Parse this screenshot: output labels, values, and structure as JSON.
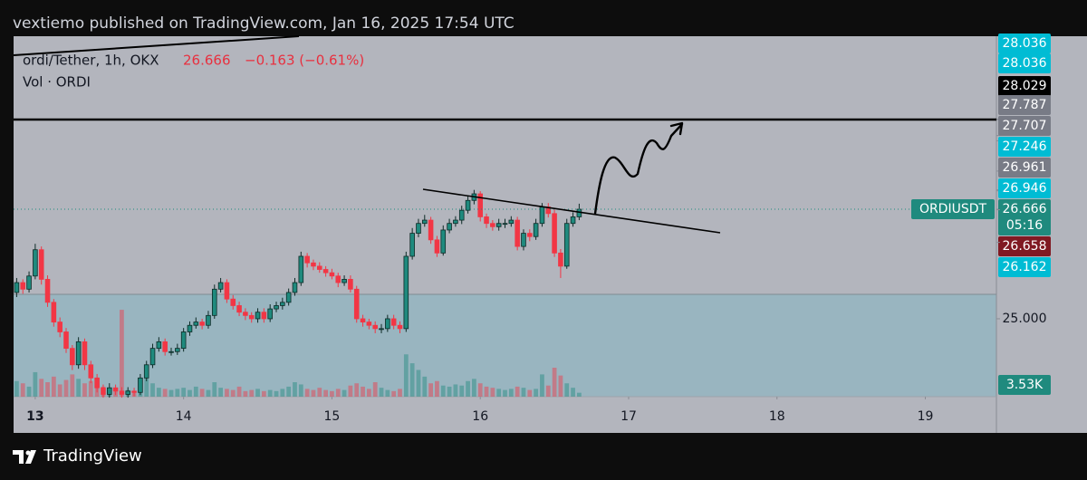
{
  "header": {
    "text": "vextiemo published on TradingView.com, Jan 16, 2025 17:54 UTC"
  },
  "chart_data": {
    "type": "candlestick",
    "symbol": "ordi/Tether, 1h, OKX",
    "last": 26.666,
    "change": "−0.163 (−0.61%)",
    "volume_title": "Vol · ORDI",
    "symbol_tag": "ORDIUSDT",
    "countdown": "05:16",
    "up_color": "#1f8a7e",
    "down_color": "#f23645",
    "xlim": [
      -0.5,
      158.5
    ],
    "xticks": [
      {
        "value": 3,
        "label": "13"
      },
      {
        "value": 27,
        "label": "14"
      },
      {
        "value": 51,
        "label": "15"
      },
      {
        "value": 75,
        "label": "16"
      },
      {
        "value": 99,
        "label": "17"
      },
      {
        "value": 123,
        "label": "18"
      },
      {
        "value": 147,
        "label": "19"
      }
    ],
    "ylim": [
      23.815,
      29.297
    ],
    "open": [
      25.4,
      25.55,
      25.45,
      25.65,
      26.05,
      25.6,
      25.25,
      24.95,
      24.8,
      24.55,
      24.3,
      24.65,
      24.3,
      24.1,
      23.95,
      23.85,
      23.95,
      23.9,
      23.85,
      23.9,
      23.88,
      24.1,
      24.3,
      24.55,
      24.65,
      24.5,
      24.5,
      24.55,
      24.8,
      24.9,
      24.95,
      24.9,
      25.05,
      25.45,
      25.55,
      25.3,
      25.2,
      25.1,
      25.05,
      25.0,
      25.1,
      25.0,
      25.15,
      25.2,
      25.25,
      25.4,
      25.55,
      25.95,
      25.85,
      25.8,
      25.75,
      25.7,
      25.65,
      25.55,
      25.6,
      25.45,
      25.0,
      24.95,
      24.9,
      24.85,
      24.85,
      25.0,
      24.9,
      24.85,
      25.95,
      26.3,
      26.45,
      26.5,
      26.2,
      26.0,
      26.35,
      26.45,
      26.5,
      26.65,
      26.8,
      26.9,
      26.55,
      26.45,
      26.4,
      26.45,
      26.45,
      26.5,
      26.1,
      26.3,
      26.25,
      26.45,
      26.7,
      26.6,
      26.0,
      25.8,
      26.45,
      26.55
    ],
    "high": [
      25.62,
      25.6,
      25.72,
      26.14,
      26.1,
      25.66,
      25.3,
      25.02,
      24.86,
      24.6,
      24.72,
      24.7,
      24.36,
      24.16,
      24.0,
      24.02,
      24.0,
      23.96,
      23.96,
      23.95,
      24.16,
      24.36,
      24.62,
      24.72,
      24.7,
      24.56,
      24.62,
      24.86,
      24.96,
      25.02,
      25.0,
      25.12,
      25.52,
      25.62,
      25.6,
      25.36,
      25.26,
      25.16,
      25.1,
      25.16,
      25.16,
      25.22,
      25.26,
      25.32,
      25.46,
      25.62,
      26.02,
      26.0,
      25.9,
      25.86,
      25.8,
      25.76,
      25.7,
      25.66,
      25.66,
      25.5,
      25.06,
      25.0,
      24.96,
      24.92,
      25.06,
      25.06,
      24.96,
      26.02,
      26.38,
      26.52,
      26.58,
      26.55,
      26.26,
      26.42,
      26.52,
      26.56,
      26.72,
      26.86,
      26.96,
      26.94,
      26.6,
      26.5,
      26.52,
      26.52,
      26.56,
      26.55,
      26.36,
      26.36,
      26.52,
      26.76,
      26.76,
      26.66,
      26.06,
      26.52,
      26.62,
      26.75
    ],
    "low": [
      25.33,
      25.38,
      25.4,
      25.6,
      25.52,
      25.18,
      24.88,
      24.72,
      24.48,
      24.22,
      24.24,
      24.22,
      24.02,
      23.88,
      23.8,
      23.8,
      23.84,
      23.8,
      23.8,
      23.82,
      23.84,
      24.05,
      24.25,
      24.5,
      24.44,
      24.44,
      24.45,
      24.5,
      24.74,
      24.85,
      24.84,
      24.85,
      25.0,
      25.4,
      25.24,
      25.14,
      25.04,
      24.98,
      24.94,
      24.94,
      24.94,
      24.95,
      25.1,
      25.14,
      25.2,
      25.35,
      25.5,
      25.78,
      25.74,
      25.7,
      25.64,
      25.6,
      25.48,
      25.5,
      25.4,
      24.94,
      24.88,
      24.84,
      24.78,
      24.78,
      24.8,
      24.84,
      24.78,
      24.8,
      25.9,
      26.24,
      26.4,
      26.14,
      25.94,
      25.96,
      26.3,
      26.4,
      26.44,
      26.6,
      26.74,
      26.48,
      26.38,
      26.34,
      26.34,
      26.38,
      26.4,
      26.04,
      26.04,
      26.18,
      26.2,
      26.4,
      26.54,
      25.94,
      25.62,
      25.76,
      26.4,
      26.5
    ],
    "close": [
      25.55,
      25.45,
      25.65,
      26.05,
      25.6,
      25.25,
      24.95,
      24.8,
      24.55,
      24.3,
      24.65,
      24.3,
      24.1,
      23.95,
      23.85,
      23.95,
      23.9,
      23.85,
      23.9,
      23.88,
      24.1,
      24.3,
      24.55,
      24.65,
      24.5,
      24.5,
      24.55,
      24.8,
      24.9,
      24.95,
      24.9,
      25.05,
      25.45,
      25.55,
      25.3,
      25.2,
      25.1,
      25.05,
      25.0,
      25.1,
      25.0,
      25.15,
      25.2,
      25.25,
      25.4,
      25.55,
      25.95,
      25.85,
      25.8,
      25.75,
      25.7,
      25.65,
      25.55,
      25.6,
      25.45,
      25.0,
      24.95,
      24.9,
      24.85,
      24.85,
      25.0,
      24.9,
      24.85,
      25.95,
      26.3,
      26.45,
      26.5,
      26.2,
      26.0,
      26.35,
      26.45,
      26.5,
      26.65,
      26.8,
      26.9,
      26.55,
      26.45,
      26.4,
      26.45,
      26.45,
      26.5,
      26.1,
      26.3,
      26.25,
      26.45,
      26.7,
      26.6,
      26.0,
      25.8,
      26.45,
      26.55,
      26.666
    ],
    "volume": [
      14000,
      12000,
      9000,
      22000,
      16000,
      13000,
      18000,
      11000,
      15000,
      20000,
      16000,
      12000,
      14000,
      10000,
      9000,
      8000,
      7000,
      78000,
      6000,
      5000,
      9000,
      17000,
      12000,
      8000,
      7000,
      6000,
      7000,
      8000,
      6000,
      9000,
      7000,
      6000,
      13000,
      8000,
      7000,
      6000,
      9000,
      5000,
      6000,
      7000,
      5000,
      6000,
      5000,
      7000,
      9000,
      13000,
      11000,
      7000,
      6000,
      8000,
      6000,
      5000,
      7000,
      6000,
      10000,
      12000,
      9000,
      7000,
      13000,
      8000,
      6000,
      5000,
      7000,
      38000,
      30000,
      24000,
      18000,
      12000,
      14000,
      10000,
      9000,
      11000,
      10000,
      14000,
      16000,
      12000,
      9000,
      8000,
      7000,
      6000,
      7000,
      9000,
      8000,
      6000,
      7000,
      20000,
      10000,
      26000,
      19000,
      12000,
      8000,
      3530
    ],
    "volume_ylim": [
      0,
      100000
    ],
    "volume_label": {
      "value": 3530,
      "label": "3.53K"
    },
    "price_labels": [
      {
        "value": 28.036,
        "color": "#00bcd4"
      },
      {
        "value": 28.036,
        "color": "#00bcd4"
      },
      {
        "value": 28.029,
        "color": "#000000"
      },
      {
        "value": 27.787,
        "color": "#787b86"
      },
      {
        "value": 27.707,
        "color": "#787b86"
      },
      {
        "value": 27.246,
        "color": "#00bcd4"
      },
      {
        "value": 26.961,
        "color": "#787b86"
      },
      {
        "value": 26.946,
        "color": "#00bcd4"
      },
      {
        "value": 26.666,
        "color": "#1f8a7e"
      },
      {
        "value": 26.658,
        "color": "#801922"
      },
      {
        "value": 26.162,
        "color": "#00bcd4"
      },
      {
        "value": 25,
        "label": "25.000",
        "color": null
      }
    ]
  },
  "footer": {
    "brand": "TradingView"
  }
}
